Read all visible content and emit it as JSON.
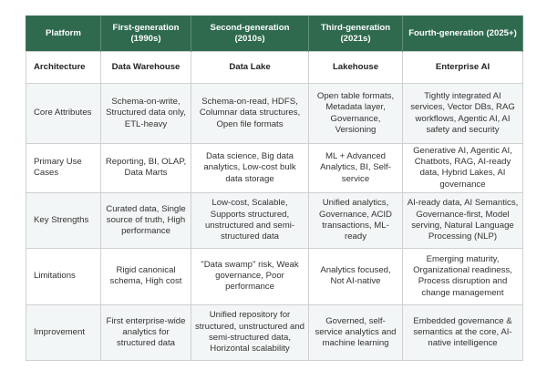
{
  "header": [
    "Platform",
    "First-generation (1990s)",
    "Second-generation (2010s)",
    "Third-generation (2021s)",
    "Fourth-generation (2025+)"
  ],
  "architecture": [
    "Architecture",
    "Data Warehouse",
    "Data Lake",
    "Lakehouse",
    "Enterprise AI"
  ],
  "rows": [
    [
      "Core Attributes",
      "Schema-on-write, Structured data only, ETL-heavy",
      "Schema-on-read, HDFS, Columnar data structures, Open file formats",
      "Open table formats, Metadata layer, Governance, Versioning",
      "Tightly integrated AI services, Vector DBs, RAG workflows, Agentic AI, AI safety and security"
    ],
    [
      "Primary Use Cases",
      "Reporting, BI, OLAP, Data Marts",
      "Data science, Big data analytics, Low-cost bulk data storage",
      "ML + Advanced Analytics, BI, Self-service",
      "Generative AI, Agentic AI, Chatbots, RAG, AI-ready data, Hybrid Lakes, AI governance"
    ],
    [
      "Key Strengths",
      "Curated data, Single source of truth, High performance",
      "Low-cost, Scalable, Supports structured, unstructured and semi-structured data",
      "Unified analytics, Governance, ACID transactions, ML-ready",
      "AI-ready data, AI Semantics, Governance-first, Model serving, Natural Language Processing (NLP)"
    ],
    [
      "Limitations",
      "Rigid canonical schema, High cost",
      "\"Data swamp\" risk, Weak governance, Poor performance",
      "Analytics focused, Not AI-native",
      "Emerging maturity, Organizational readiness, Process disruption and change management"
    ],
    [
      "Improvement",
      "First enterprise-wide analytics for structured data",
      "Unified repository for structured, unstructured and semi-structured data, Horizontal scalability",
      "Governed, self-service analytics and machine learning",
      "Embedded governance & semantics at the core, AI-native intelligence"
    ]
  ],
  "colors": {
    "header_bg": "#2f6a4f",
    "alt_row_bg": "#f3f6f6"
  }
}
